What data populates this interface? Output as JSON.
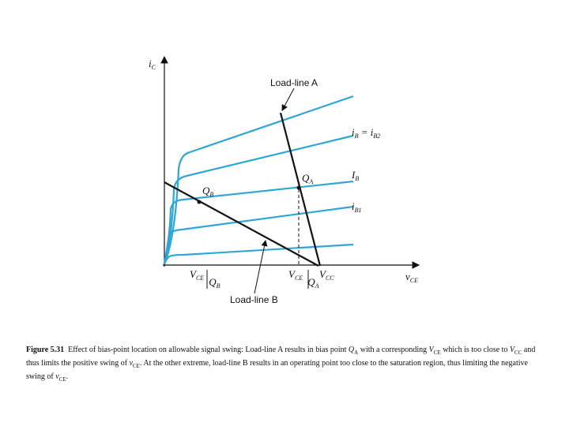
{
  "diagram": {
    "axes": {
      "y_label": [
        "i",
        "C"
      ],
      "x_label": [
        "v",
        "CE"
      ]
    },
    "load_lines": {
      "a": "Load-line A",
      "b": "Load-line B"
    },
    "curve_labels": {
      "top": [
        "i",
        "B",
        " = ",
        "i",
        "B2"
      ],
      "middle": [
        "I",
        "B"
      ],
      "lower": [
        "i",
        "B1"
      ]
    },
    "points": {
      "qa": [
        "Q",
        "A"
      ],
      "qb": [
        "Q",
        "B"
      ]
    },
    "x_marks": {
      "vce_qb": [
        "V",
        "CE",
        "Q",
        "B"
      ],
      "vce_qa": [
        "V",
        "CE",
        "Q",
        "A"
      ],
      "vcc": [
        "V",
        "CC"
      ]
    }
  },
  "caption": {
    "label": "Figure 5.31",
    "parts": [
      "Effect of bias-point location on allowable signal swing: Load-line A results in bias point ",
      "Q",
      "A",
      " with a corresponding ",
      "V",
      "CE",
      " which is too close to ",
      "V",
      "CC",
      " and thus limits the positive swing of ",
      "v",
      "CE",
      ". At the other extreme, load-line B results in an operating point too close to the saturation region, thus limiting the negative swing of ",
      "v",
      "CE",
      "."
    ]
  }
}
